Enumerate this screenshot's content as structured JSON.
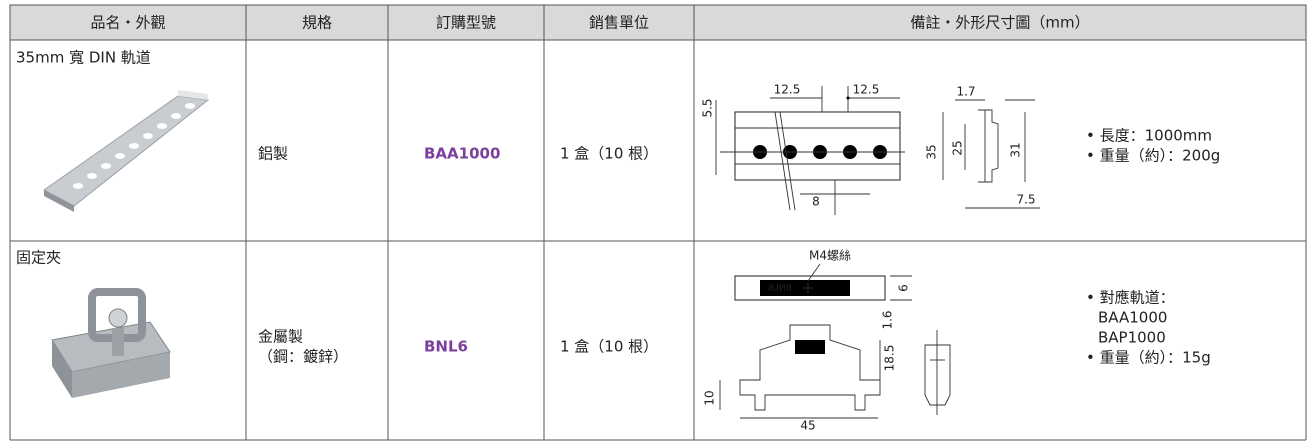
{
  "table": {
    "headers": [
      "品名・外觀",
      "規格",
      "訂購型號",
      "銷售單位",
      "備註・外形尺寸圖（mm）"
    ],
    "rows": [
      {
        "name": "35mm 寬 DIN 軌道",
        "spec": [
          "鋁製"
        ],
        "order_no": "BAA1000",
        "unit": "1 盒（10 根）",
        "notes": [
          "• 長度：1000mm",
          "• 重量（約）：200g"
        ],
        "drawing_labels": [
          "12.5",
          "12.5",
          "1.7",
          "5.5",
          "35",
          "25",
          "31",
          "8",
          "7.5"
        ]
      },
      {
        "name": "固定夾",
        "spec": [
          "金屬製",
          "（鋼：鍍鋅）"
        ],
        "order_no": "BNL6",
        "unit": "1 盒（10 根）",
        "notes": [
          "• 對應軌道：",
          "BAA1000",
          "BAP1000",
          "• 重量（約）：15g"
        ],
        "drawing_labels": [
          "M4螺絲",
          "BNL6",
          "6",
          "1.6",
          "18.5",
          "10",
          "45"
        ]
      }
    ]
  }
}
